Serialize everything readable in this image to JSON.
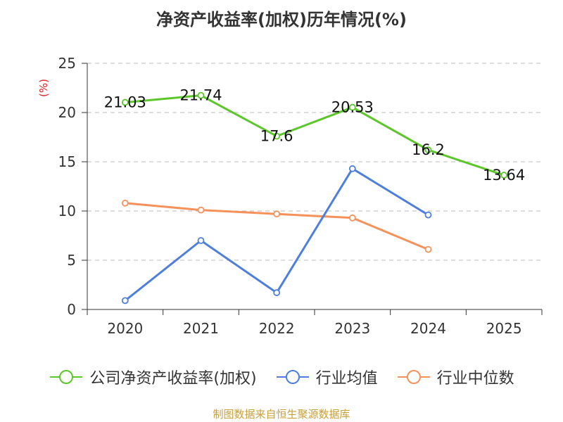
{
  "chart_data": {
    "type": "line",
    "title": "净资产收益率(加权)历年情况(%)",
    "ylabel": "(%)",
    "xlabel": "",
    "categories": [
      "2020",
      "2021",
      "2022",
      "2023",
      "2024",
      "2025"
    ],
    "ylim": [
      0,
      25
    ],
    "yticks": [
      0,
      5,
      10,
      15,
      20,
      25
    ],
    "grid": "horizontal dashed",
    "legend_position": "bottom",
    "series": [
      {
        "name": "公司净资产收益率(加权)",
        "color": "#5cc72a",
        "values": [
          21.03,
          21.74,
          17.6,
          20.53,
          16.2,
          13.64
        ],
        "labels": [
          "21.03",
          "21.74",
          "17.6",
          "20.53",
          "16.2",
          "13.64"
        ]
      },
      {
        "name": "行业均值",
        "color": "#4f7fdc",
        "values": [
          0.9,
          7.0,
          1.7,
          14.3,
          9.6,
          null
        ]
      },
      {
        "name": "行业中位数",
        "color": "#f7915a",
        "values": [
          10.8,
          10.1,
          9.7,
          9.3,
          6.1,
          null
        ]
      }
    ]
  },
  "source": "制图数据来自恒生聚源数据库"
}
